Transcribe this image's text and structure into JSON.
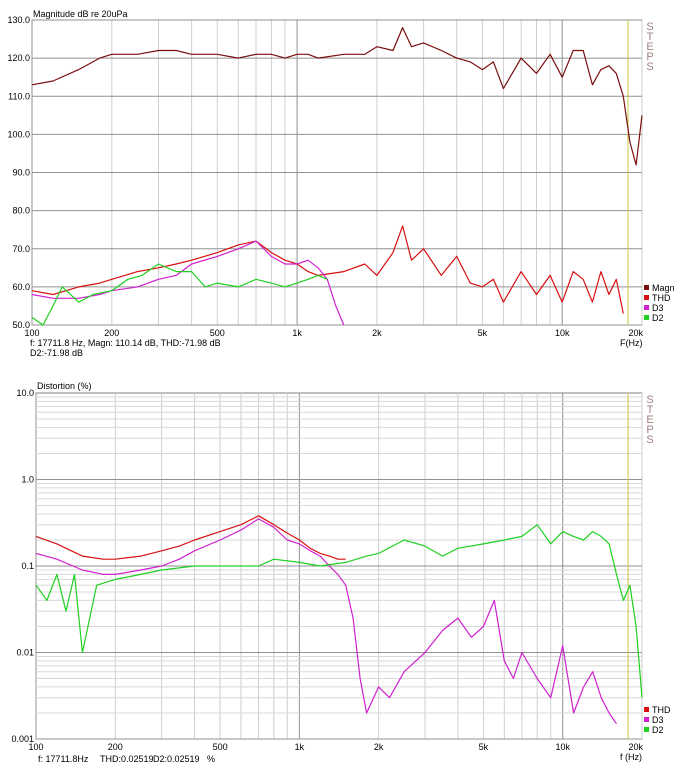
{
  "chart_data": [
    {
      "type": "line",
      "title": "Magnitude dB re 20uPa",
      "xlabel": "F(Hz)",
      "ylabel": "",
      "xscale": "log",
      "xlim": [
        100,
        20000
      ],
      "ylim": [
        50,
        130
      ],
      "grid": true,
      "legend_position": "bottom-right",
      "yticks": [
        "50.0",
        "60.0",
        "70.0",
        "80.0",
        "90.0",
        "100.0",
        "110.0",
        "120.0",
        "130.0"
      ],
      "xticks": [
        "100",
        "200",
        "500",
        "1k",
        "2k",
        "5k",
        "10k",
        "20k"
      ],
      "watermark": "STEPS",
      "cursor_hz": 17711.8,
      "readout": [
        "f: 17711.8 Hz, Magn: 110.14 dB, THD:-71.98 dB",
        "D2:-71.98 dB"
      ],
      "series": [
        {
          "name": "Magn",
          "color": "#7a0e0e",
          "x": [
            100,
            120,
            150,
            180,
            200,
            250,
            300,
            350,
            400,
            500,
            600,
            700,
            800,
            900,
            1000,
            1100,
            1200,
            1500,
            1800,
            2000,
            2300,
            2500,
            2700,
            3000,
            3500,
            4000,
            4500,
            5000,
            5500,
            6000,
            7000,
            8000,
            9000,
            10000,
            11000,
            12000,
            13000,
            14000,
            15000,
            16000,
            17000,
            18000,
            19000,
            20000
          ],
          "y": [
            113,
            114,
            117,
            120,
            121,
            121,
            122,
            122,
            121,
            121,
            120,
            121,
            121,
            120,
            121,
            121,
            120,
            121,
            121,
            123,
            122,
            128,
            123,
            124,
            122,
            120,
            119,
            117,
            119,
            112,
            120,
            116,
            121,
            115,
            122,
            122,
            113,
            117,
            118,
            116,
            110,
            98,
            92,
            105
          ]
        },
        {
          "name": "THD",
          "color": "#d81010",
          "x": [
            100,
            120,
            150,
            180,
            200,
            250,
            300,
            350,
            400,
            500,
            600,
            700,
            800,
            900,
            1000,
            1100,
            1200,
            1500,
            1800,
            2000,
            2300,
            2500,
            2700,
            3000,
            3500,
            4000,
            4500,
            5000,
            5500,
            6000,
            7000,
            8000,
            9000,
            10000,
            11000,
            12000,
            13000,
            14000,
            15000,
            16000,
            17000
          ],
          "y": [
            59,
            58,
            60,
            61,
            62,
            64,
            65,
            66,
            67,
            69,
            71,
            72,
            69,
            67,
            66,
            64,
            63,
            64,
            66,
            63,
            69,
            76,
            67,
            70,
            63,
            68,
            61,
            60,
            62,
            56,
            64,
            58,
            63,
            56,
            64,
            62,
            56,
            64,
            58,
            62,
            53
          ]
        },
        {
          "name": "D3",
          "color": "#d020d0",
          "x": [
            100,
            120,
            150,
            180,
            200,
            250,
            300,
            350,
            400,
            500,
            600,
            700,
            800,
            900,
            1000,
            1100,
            1200,
            1300,
            1400,
            1500
          ],
          "y": [
            58,
            57,
            57,
            58,
            59,
            60,
            62,
            63,
            66,
            68,
            70,
            72,
            68,
            66,
            66,
            67,
            65,
            62,
            55,
            49
          ]
        },
        {
          "name": "D2",
          "color": "#20d020",
          "x": [
            100,
            110,
            120,
            130,
            150,
            170,
            200,
            230,
            260,
            300,
            350,
            400,
            450,
            500,
            600,
            700,
            800,
            900,
            1000,
            1100,
            1200,
            1300
          ],
          "y": [
            52,
            50,
            55,
            60,
            56,
            58,
            59,
            62,
            63,
            66,
            64,
            64,
            60,
            61,
            60,
            62,
            61,
            60,
            61,
            62,
            63,
            62
          ]
        }
      ]
    },
    {
      "type": "line",
      "title": "Distortion (%)",
      "xlabel": "f (Hz)",
      "ylabel": "",
      "xscale": "log",
      "yscale": "log",
      "xlim": [
        100,
        20000
      ],
      "ylim": [
        0.001,
        10
      ],
      "grid": true,
      "legend_position": "bottom-right",
      "yticks": [
        "0.001",
        "0.01",
        "0.1",
        "1.0",
        "10.0"
      ],
      "xticks": [
        "100",
        "200",
        "500",
        "1k",
        "2k",
        "5k",
        "10k",
        "20k"
      ],
      "watermark": "STEPS",
      "cursor_hz": 17711.8,
      "readout": [
        "f: 17711.8Hz",
        "THD:0.02519",
        "D2:0.02519",
        "%"
      ],
      "series": [
        {
          "name": "THD",
          "color": "#d81010",
          "x": [
            100,
            120,
            150,
            180,
            200,
            250,
            300,
            350,
            400,
            500,
            600,
            700,
            800,
            900,
            1000,
            1100,
            1200,
            1300,
            1400,
            1500
          ],
          "y": [
            0.22,
            0.18,
            0.13,
            0.12,
            0.12,
            0.13,
            0.15,
            0.17,
            0.2,
            0.25,
            0.3,
            0.38,
            0.3,
            0.24,
            0.2,
            0.16,
            0.14,
            0.13,
            0.12,
            0.12
          ]
        },
        {
          "name": "D3",
          "color": "#d020d0",
          "x": [
            100,
            120,
            150,
            180,
            200,
            250,
            300,
            350,
            400,
            500,
            600,
            700,
            800,
            900,
            1000,
            1100,
            1200,
            1300,
            1400,
            1500,
            1600,
            1700,
            1800,
            2000,
            2200,
            2500,
            3000,
            3500,
            4000,
            4500,
            5000,
            5500,
            6000,
            6500,
            7000,
            8000,
            9000,
            10000,
            11000,
            12000,
            13000,
            14000,
            15000,
            16000
          ],
          "y": [
            0.14,
            0.12,
            0.09,
            0.08,
            0.08,
            0.09,
            0.1,
            0.12,
            0.15,
            0.2,
            0.26,
            0.35,
            0.28,
            0.2,
            0.18,
            0.15,
            0.13,
            0.1,
            0.08,
            0.06,
            0.025,
            0.005,
            0.002,
            0.004,
            0.003,
            0.006,
            0.01,
            0.018,
            0.025,
            0.015,
            0.02,
            0.04,
            0.008,
            0.005,
            0.01,
            0.005,
            0.003,
            0.012,
            0.002,
            0.004,
            0.006,
            0.003,
            0.002,
            0.0015
          ]
        },
        {
          "name": "D2",
          "color": "#20d020",
          "x": [
            100,
            110,
            120,
            130,
            140,
            150,
            170,
            200,
            250,
            300,
            400,
            500,
            600,
            700,
            800,
            1000,
            1200,
            1500,
            1800,
            2000,
            2500,
            3000,
            3500,
            4000,
            5000,
            6000,
            7000,
            8000,
            9000,
            10000,
            11000,
            12000,
            13000,
            14000,
            15000,
            16000,
            17000,
            18000,
            19000,
            20000
          ],
          "y": [
            0.06,
            0.04,
            0.08,
            0.03,
            0.08,
            0.01,
            0.06,
            0.07,
            0.08,
            0.09,
            0.1,
            0.1,
            0.1,
            0.1,
            0.12,
            0.11,
            0.1,
            0.11,
            0.13,
            0.14,
            0.2,
            0.17,
            0.13,
            0.16,
            0.18,
            0.2,
            0.22,
            0.3,
            0.18,
            0.25,
            0.22,
            0.2,
            0.25,
            0.22,
            0.18,
            0.08,
            0.04,
            0.06,
            0.02,
            0.003
          ]
        }
      ]
    }
  ]
}
